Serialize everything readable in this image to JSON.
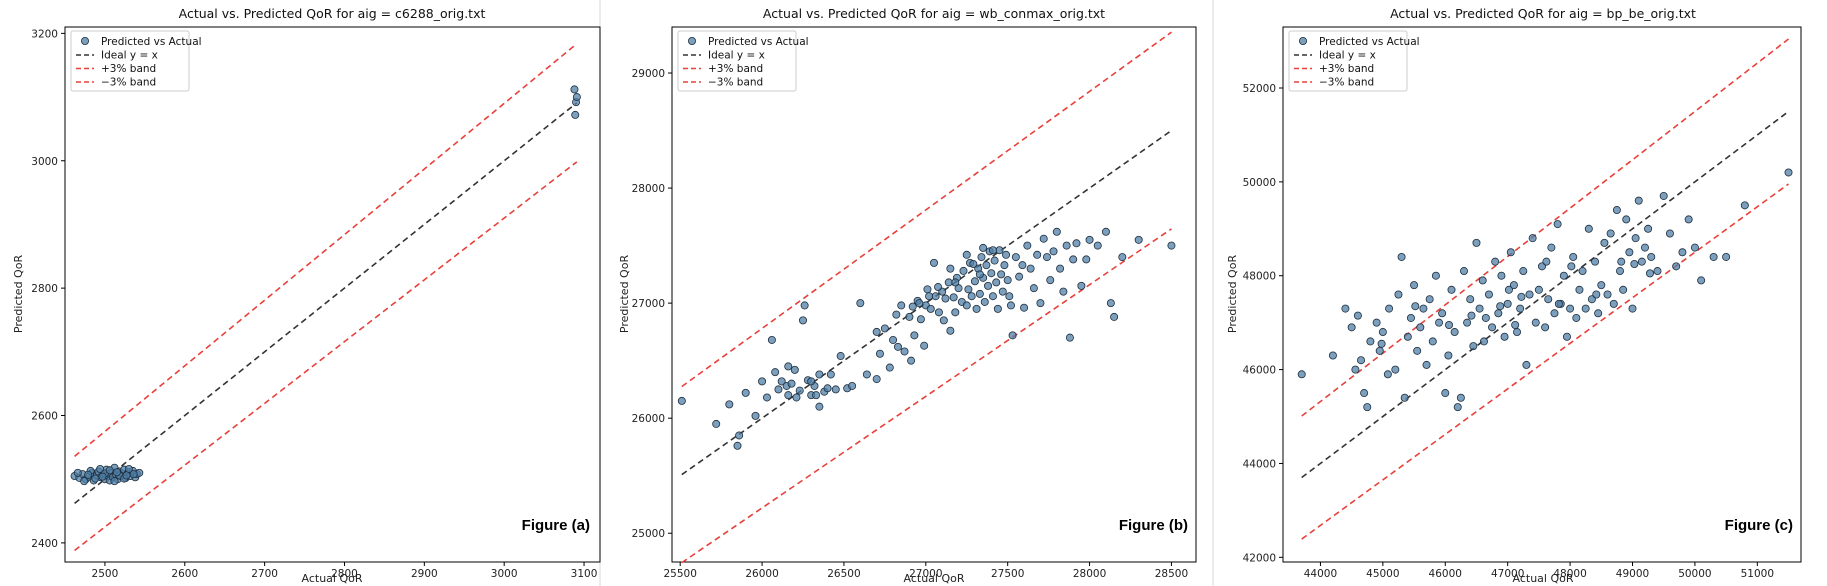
{
  "colors": {
    "points": "#4f7fa5",
    "ideal": "#333333",
    "band": "#e8403a"
  },
  "chart_data": [
    {
      "type": "scatter",
      "title": "Actual vs. Predicted QoR for aig = c6288_orig.txt",
      "xlabel": "Actual QoR",
      "ylabel": "Predicted QoR",
      "xlim": [
        2450,
        3120
      ],
      "ylim": [
        2370,
        3210
      ],
      "xticks": [
        2500,
        2600,
        2700,
        2800,
        2900,
        3000,
        3100
      ],
      "yticks": [
        2400,
        2600,
        2800,
        3000,
        3200
      ],
      "figure_label": "Figure (a)",
      "legend": [
        "Predicted vs Actual",
        "Ideal y = x",
        "+3% band",
        "−3% band"
      ],
      "legend_position": "upper-left",
      "grid": false,
      "points": [
        [
          2462,
          2505
        ],
        [
          2468,
          2502
        ],
        [
          2472,
          2508
        ],
        [
          2476,
          2500
        ],
        [
          2480,
          2504
        ],
        [
          2484,
          2510
        ],
        [
          2486,
          2498
        ],
        [
          2490,
          2506
        ],
        [
          2492,
          2512
        ],
        [
          2495,
          2503
        ],
        [
          2498,
          2507
        ],
        [
          2500,
          2500
        ],
        [
          2502,
          2515
        ],
        [
          2504,
          2505
        ],
        [
          2506,
          2498
        ],
        [
          2508,
          2510
        ],
        [
          2510,
          2503
        ],
        [
          2512,
          2518
        ],
        [
          2514,
          2507
        ],
        [
          2516,
          2500
        ],
        [
          2518,
          2512
        ],
        [
          2520,
          2505
        ],
        [
          2522,
          2509
        ],
        [
          2524,
          2515
        ],
        [
          2526,
          2502
        ],
        [
          2528,
          2508
        ],
        [
          2530,
          2511
        ],
        [
          2532,
          2505
        ],
        [
          2535,
          2513
        ],
        [
          2538,
          2503
        ],
        [
          2540,
          2508
        ],
        [
          2543,
          2510
        ],
        [
          2466,
          2510
        ],
        [
          2474,
          2497
        ],
        [
          2482,
          2513
        ],
        [
          2488,
          2501
        ],
        [
          2494,
          2516
        ],
        [
          2500,
          2509
        ],
        [
          2506,
          2514
        ],
        [
          2512,
          2497
        ],
        [
          2518,
          2506
        ],
        [
          2524,
          2501
        ],
        [
          2530,
          2516
        ],
        [
          2536,
          2508
        ],
        [
          2479,
          2507
        ],
        [
          2497,
          2504
        ],
        [
          2515,
          2511
        ],
        [
          2527,
          2506
        ],
        [
          3088,
          3112
        ],
        [
          3090,
          3092
        ],
        [
          3089,
          3072
        ],
        [
          3091,
          3100
        ]
      ]
    },
    {
      "type": "scatter",
      "title": "Actual vs. Predicted QoR for aig = wb_conmax_orig.txt",
      "xlabel": "Actual QoR",
      "ylabel": "Predicted QoR",
      "xlim": [
        25450,
        28650
      ],
      "ylim": [
        24750,
        29400
      ],
      "xticks": [
        25500,
        26000,
        26500,
        27000,
        27500,
        28000,
        28500
      ],
      "yticks": [
        25000,
        26000,
        27000,
        28000,
        29000
      ],
      "figure_label": "Figure (b)",
      "legend": [
        "Predicted vs Actual",
        "Ideal y = x",
        "+3% band",
        "−3% band"
      ],
      "legend_position": "upper-left",
      "grid": false,
      "points": [
        [
          25510,
          26150
        ],
        [
          25720,
          25950
        ],
        [
          25800,
          26120
        ],
        [
          25850,
          25760
        ],
        [
          25860,
          25850
        ],
        [
          25900,
          26220
        ],
        [
          25960,
          26020
        ],
        [
          26000,
          26320
        ],
        [
          26030,
          26180
        ],
        [
          26060,
          26680
        ],
        [
          26080,
          26400
        ],
        [
          26100,
          26250
        ],
        [
          26120,
          26320
        ],
        [
          26150,
          26280
        ],
        [
          26160,
          26450
        ],
        [
          26180,
          26300
        ],
        [
          26200,
          26420
        ],
        [
          26210,
          26180
        ],
        [
          26230,
          26240
        ],
        [
          26250,
          26850
        ],
        [
          26260,
          26980
        ],
        [
          26280,
          26330
        ],
        [
          26300,
          26200
        ],
        [
          26320,
          26280
        ],
        [
          26330,
          26200
        ],
        [
          26350,
          26380
        ],
        [
          26380,
          26230
        ],
        [
          26400,
          26260
        ],
        [
          26420,
          26380
        ],
        [
          26450,
          26250
        ],
        [
          26480,
          26540
        ],
        [
          26520,
          26260
        ],
        [
          26550,
          26280
        ],
        [
          26600,
          27000
        ],
        [
          26640,
          26380
        ],
        [
          26700,
          26340
        ],
        [
          26720,
          26560
        ],
        [
          26750,
          26780
        ],
        [
          26780,
          26440
        ],
        [
          26800,
          26680
        ],
        [
          26830,
          26620
        ],
        [
          26850,
          26980
        ],
        [
          26870,
          26580
        ],
        [
          26900,
          26880
        ],
        [
          26910,
          26500
        ],
        [
          26930,
          26720
        ],
        [
          26950,
          27020
        ],
        [
          26970,
          26860
        ],
        [
          26990,
          26630
        ],
        [
          27000,
          26980
        ],
        [
          27010,
          27120
        ],
        [
          27030,
          26950
        ],
        [
          27050,
          27350
        ],
        [
          27060,
          27060
        ],
        [
          27080,
          26920
        ],
        [
          27100,
          27100
        ],
        [
          27110,
          26850
        ],
        [
          27120,
          27040
        ],
        [
          27140,
          27180
        ],
        [
          27150,
          26760
        ],
        [
          27170,
          27050
        ],
        [
          27180,
          26920
        ],
        [
          27200,
          27130
        ],
        [
          27220,
          27010
        ],
        [
          27230,
          27280
        ],
        [
          27250,
          26980
        ],
        [
          27260,
          27120
        ],
        [
          27270,
          27350
        ],
        [
          27280,
          27060
        ],
        [
          27300,
          27190
        ],
        [
          27310,
          26950
        ],
        [
          27320,
          27300
        ],
        [
          27330,
          27080
        ],
        [
          27340,
          27400
        ],
        [
          27350,
          27220
        ],
        [
          27360,
          27010
        ],
        [
          27370,
          27330
        ],
        [
          27380,
          27150
        ],
        [
          27390,
          27450
        ],
        [
          27400,
          27260
        ],
        [
          27410,
          27060
        ],
        [
          27420,
          27370
        ],
        [
          27430,
          27180
        ],
        [
          27440,
          26950
        ],
        [
          27450,
          27460
        ],
        [
          27460,
          27250
        ],
        [
          27470,
          27100
        ],
        [
          27480,
          27330
        ],
        [
          27490,
          27420
        ],
        [
          27500,
          27200
        ],
        [
          27510,
          27060
        ],
        [
          27520,
          26980
        ],
        [
          27530,
          26720
        ],
        [
          27550,
          27400
        ],
        [
          27570,
          27230
        ],
        [
          27590,
          27330
        ],
        [
          27600,
          26960
        ],
        [
          27620,
          27500
        ],
        [
          27640,
          27300
        ],
        [
          27660,
          27130
        ],
        [
          27680,
          27420
        ],
        [
          27700,
          27000
        ],
        [
          27720,
          27560
        ],
        [
          27740,
          27400
        ],
        [
          27760,
          27200
        ],
        [
          27780,
          27450
        ],
        [
          27800,
          27620
        ],
        [
          27820,
          27300
        ],
        [
          27840,
          27100
        ],
        [
          27860,
          27500
        ],
        [
          27880,
          26700
        ],
        [
          27900,
          27380
        ],
        [
          27920,
          27520
        ],
        [
          27950,
          27150
        ],
        [
          27980,
          27380
        ],
        [
          28000,
          27550
        ],
        [
          28050,
          27500
        ],
        [
          28100,
          27620
        ],
        [
          28130,
          27000
        ],
        [
          28150,
          26880
        ],
        [
          28200,
          27400
        ],
        [
          28300,
          27550
        ],
        [
          28500,
          27500
        ],
        [
          27150,
          27300
        ],
        [
          27250,
          27420
        ],
        [
          27350,
          27480
        ],
        [
          27020,
          27060
        ],
        [
          26960,
          27000
        ],
        [
          26920,
          26970
        ],
        [
          27075,
          27140
        ],
        [
          27190,
          27220
        ],
        [
          27290,
          27340
        ],
        [
          27410,
          27460
        ],
        [
          26300,
          26320
        ],
        [
          26350,
          26100
        ],
        [
          26160,
          26200
        ],
        [
          26700,
          26750
        ],
        [
          26820,
          26900
        ],
        [
          27180,
          27180
        ],
        [
          27330,
          27250
        ]
      ]
    },
    {
      "type": "scatter",
      "title": "Actual vs. Predicted QoR for aig = bp_be_orig.txt",
      "xlabel": "Actual QoR",
      "ylabel": "Predicted QoR",
      "xlim": [
        43400,
        51700
      ],
      "ylim": [
        41900,
        53300
      ],
      "xticks": [
        44000,
        45000,
        46000,
        47000,
        48000,
        49000,
        50000,
        51000
      ],
      "yticks": [
        42000,
        44000,
        46000,
        48000,
        50000,
        52000
      ],
      "figure_label": "Figure (c)",
      "legend": [
        "Predicted vs Actual",
        "Ideal y = x",
        "+3% band",
        "−3% band"
      ],
      "legend_position": "upper-left",
      "grid": false,
      "points": [
        [
          43700,
          45900
        ],
        [
          44200,
          46300
        ],
        [
          44400,
          47300
        ],
        [
          44500,
          46900
        ],
        [
          44600,
          47150
        ],
        [
          44650,
          46200
        ],
        [
          44700,
          45500
        ],
        [
          44750,
          45200
        ],
        [
          44800,
          46600
        ],
        [
          44900,
          47000
        ],
        [
          44950,
          46400
        ],
        [
          45000,
          46800
        ],
        [
          45100,
          47300
        ],
        [
          45200,
          46000
        ],
        [
          45250,
          47600
        ],
        [
          45300,
          48400
        ],
        [
          45350,
          45400
        ],
        [
          45400,
          46700
        ],
        [
          45450,
          47100
        ],
        [
          45500,
          47800
        ],
        [
          45550,
          46400
        ],
        [
          45600,
          46900
        ],
        [
          45650,
          47300
        ],
        [
          45700,
          46100
        ],
        [
          45750,
          47500
        ],
        [
          45800,
          46600
        ],
        [
          45850,
          48000
        ],
        [
          45900,
          47000
        ],
        [
          45950,
          47200
        ],
        [
          46000,
          45500
        ],
        [
          46050,
          46300
        ],
        [
          46100,
          47700
        ],
        [
          46150,
          46800
        ],
        [
          46200,
          45200
        ],
        [
          46250,
          45400
        ],
        [
          46300,
          48100
        ],
        [
          46350,
          47000
        ],
        [
          46400,
          47500
        ],
        [
          46450,
          46500
        ],
        [
          46500,
          48700
        ],
        [
          46550,
          47300
        ],
        [
          46600,
          47900
        ],
        [
          46650,
          47100
        ],
        [
          46700,
          47600
        ],
        [
          46750,
          46900
        ],
        [
          46800,
          48300
        ],
        [
          46850,
          47200
        ],
        [
          46900,
          48000
        ],
        [
          46950,
          46700
        ],
        [
          47000,
          47400
        ],
        [
          47050,
          48500
        ],
        [
          47100,
          47800
        ],
        [
          47150,
          46800
        ],
        [
          47200,
          47300
        ],
        [
          47250,
          48100
        ],
        [
          47300,
          46100
        ],
        [
          47350,
          47600
        ],
        [
          47400,
          48800
        ],
        [
          47450,
          47000
        ],
        [
          47500,
          47700
        ],
        [
          47550,
          48200
        ],
        [
          47600,
          46900
        ],
        [
          47650,
          47500
        ],
        [
          47700,
          48600
        ],
        [
          47750,
          47200
        ],
        [
          47800,
          49100
        ],
        [
          47850,
          47400
        ],
        [
          47900,
          48000
        ],
        [
          47950,
          46700
        ],
        [
          48000,
          47300
        ],
        [
          48050,
          48400
        ],
        [
          48100,
          47100
        ],
        [
          48150,
          47700
        ],
        [
          48200,
          48100
        ],
        [
          48250,
          47300
        ],
        [
          48300,
          49000
        ],
        [
          48350,
          47500
        ],
        [
          48400,
          48300
        ],
        [
          48450,
          47200
        ],
        [
          48500,
          47800
        ],
        [
          48550,
          48700
        ],
        [
          48600,
          47600
        ],
        [
          48650,
          48900
        ],
        [
          48700,
          47400
        ],
        [
          48750,
          49400
        ],
        [
          48800,
          48100
        ],
        [
          48850,
          47700
        ],
        [
          48900,
          49200
        ],
        [
          48950,
          48500
        ],
        [
          49000,
          47300
        ],
        [
          49050,
          48800
        ],
        [
          49100,
          49600
        ],
        [
          49150,
          48300
        ],
        [
          49200,
          48600
        ],
        [
          49250,
          49000
        ],
        [
          49300,
          48400
        ],
        [
          49400,
          48100
        ],
        [
          49500,
          49700
        ],
        [
          49600,
          48900
        ],
        [
          49700,
          48200
        ],
        [
          49800,
          48500
        ],
        [
          49900,
          49200
        ],
        [
          50000,
          48600
        ],
        [
          50100,
          47900
        ],
        [
          50300,
          48400
        ],
        [
          50500,
          48400
        ],
        [
          50800,
          49500
        ],
        [
          51500,
          50200
        ],
        [
          47020,
          47700
        ],
        [
          47120,
          46950
        ],
        [
          47220,
          47550
        ],
        [
          46880,
          47350
        ],
        [
          46420,
          47150
        ],
        [
          46060,
          46950
        ],
        [
          45520,
          47350
        ],
        [
          44980,
          46550
        ],
        [
          47820,
          47400
        ],
        [
          48020,
          48200
        ],
        [
          48420,
          47600
        ],
        [
          48820,
          48300
        ],
        [
          49030,
          48250
        ],
        [
          49280,
          48050
        ],
        [
          45080,
          45900
        ],
        [
          44560,
          46000
        ],
        [
          46620,
          46600
        ],
        [
          47620,
          48300
        ]
      ]
    }
  ]
}
